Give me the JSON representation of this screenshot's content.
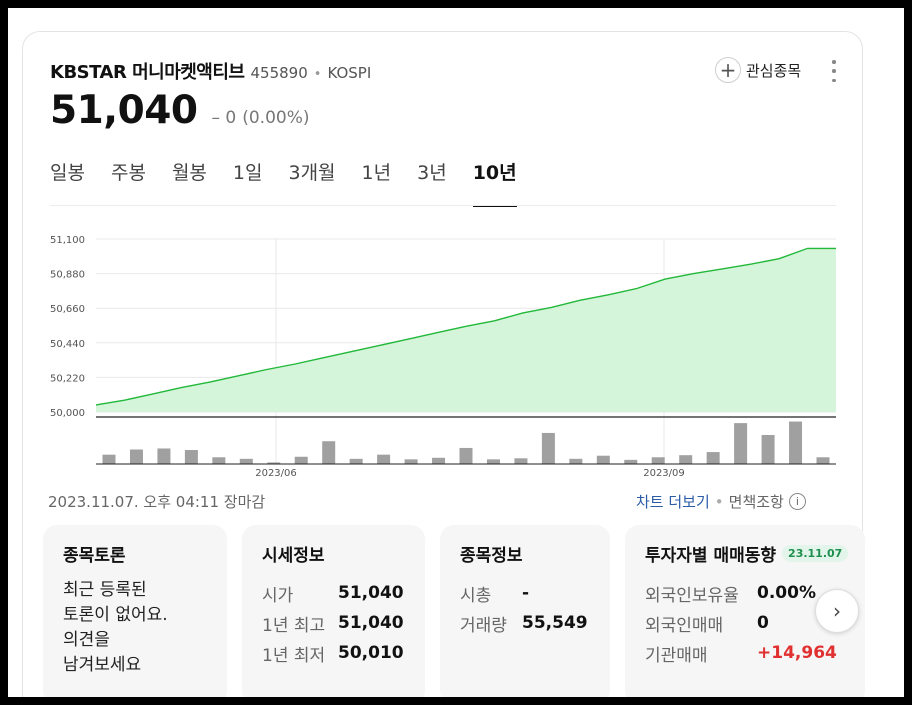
{
  "stock": {
    "name": "KBSTAR 머니마켓액티브",
    "code": "455890",
    "separator": "•",
    "market": "KOSPI",
    "price": "51,040",
    "change": "0",
    "change_prefix": "–",
    "change_pct": "(0.00%)"
  },
  "actions": {
    "favorite_plus": "+",
    "favorite_label": "관심종목"
  },
  "tabs": [
    {
      "label": "일봉"
    },
    {
      "label": "주봉"
    },
    {
      "label": "월봉"
    },
    {
      "label": "1일"
    },
    {
      "label": "3개월"
    },
    {
      "label": "1년"
    },
    {
      "label": "3년"
    },
    {
      "label": "10년",
      "active": true
    }
  ],
  "chart_data": {
    "type": "area",
    "y_ticks": [
      "51,100",
      "50,880",
      "50,660",
      "50,440",
      "50,220",
      "50,000"
    ],
    "ylim": [
      50000,
      51100
    ],
    "x_labels": [
      "2023/06",
      "2023/09"
    ],
    "series": [
      {
        "values": [
          50045,
          50075,
          50115,
          50155,
          50190,
          50230,
          50270,
          50305,
          50345,
          50385,
          50425,
          50465,
          50505,
          50545,
          50580,
          50630,
          50665,
          50710,
          50745,
          50785,
          50845,
          50880,
          50910,
          50940,
          50975,
          51040,
          51040
        ]
      }
    ],
    "volume": [
      18,
      28,
      30,
      27,
      13,
      10,
      3,
      14,
      44,
      10,
      18,
      9,
      12,
      31,
      9,
      11,
      60,
      10,
      16,
      8,
      13,
      17,
      23,
      79,
      56,
      82,
      13
    ],
    "colors": {
      "line": "#22b83a",
      "fill": "#d4f5d9",
      "bar": "#a0a0a0",
      "grid": "#e8e8e8"
    }
  },
  "footer": {
    "timestamp": "2023.11.07. 오후 04:11 장마감",
    "more_chart": "차트 더보기",
    "dot": "•",
    "disclaimer": "면책조항",
    "info_glyph": "i"
  },
  "panels": {
    "discussion": {
      "title": "종목토론",
      "lines": [
        "최근 등록된",
        "토론이 없어요.",
        "의견을",
        "남겨보세요"
      ]
    },
    "quote": {
      "title": "시세정보",
      "rows": [
        {
          "label": "시가",
          "value": "51,040"
        },
        {
          "label": "1년 최고",
          "value": "51,040"
        },
        {
          "label": "1년 최저",
          "value": "50,010"
        }
      ]
    },
    "info": {
      "title": "종목정보",
      "rows": [
        {
          "label": "시총",
          "value": "-"
        },
        {
          "label": "거래량",
          "value": "55,549"
        }
      ]
    },
    "investor": {
      "title": "투자자별 매매동향",
      "date": "23.11.07",
      "rows": [
        {
          "label": "외국인보유율",
          "value": "0.00%"
        },
        {
          "label": "외국인매매",
          "value": "0"
        },
        {
          "label": "기관매매",
          "value": "+14,964"
        }
      ]
    }
  },
  "nav": {
    "next_glyph": "›"
  }
}
